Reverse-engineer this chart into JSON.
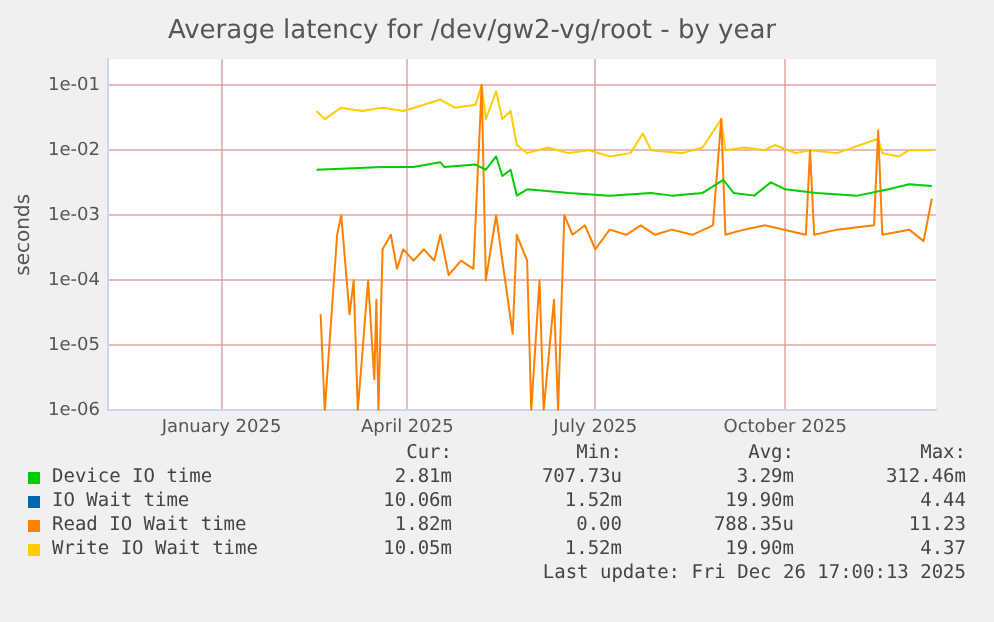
{
  "chart_data": {
    "type": "line",
    "title": "Average latency for /dev/gw2-vg/root - by year",
    "ylabel": "seconds",
    "log": "y",
    "grid": true,
    "legend": "bottom",
    "marker": "none",
    "line_style": "solid",
    "xlim": [
      "2024-11-22",
      "2025-12-28"
    ],
    "xticks": [
      {
        "value": "2025-01-16",
        "label": "January 2025"
      },
      {
        "value": "2025-04-16",
        "label": "April 2025"
      },
      {
        "value": "2025-07-16",
        "label": "July 2025"
      },
      {
        "value": "2025-10-16",
        "label": "October 2025"
      }
    ],
    "ylim": [
      1e-06,
      0.25
    ],
    "yticks": [
      {
        "value": 1e-06,
        "label": "1e-06"
      },
      {
        "value": 1e-05,
        "label": "1e-05"
      },
      {
        "value": 0.0001,
        "label": "1e-04"
      },
      {
        "value": 0.001,
        "label": "1e-03"
      },
      {
        "value": 0.01,
        "label": "1e-02"
      },
      {
        "value": 0.1,
        "label": "1e-01"
      }
    ],
    "series": [
      {
        "name": "Device IO time",
        "color": "#00cc00",
        "x": [
          "2025-03-03",
          "2025-03-15",
          "2025-04-04",
          "2025-04-19",
          "2025-05-02",
          "2025-05-04",
          "2025-05-19",
          "2025-05-24",
          "2025-05-29",
          "2025-06-01",
          "2025-06-05",
          "2025-06-08",
          "2025-06-13",
          "2025-07-03",
          "2025-07-23",
          "2025-08-12",
          "2025-08-22",
          "2025-09-06",
          "2025-09-16",
          "2025-09-21",
          "2025-10-01",
          "2025-10-09",
          "2025-10-16",
          "2025-10-31",
          "2025-11-20",
          "2025-12-05",
          "2025-12-15",
          "2025-12-26"
        ],
        "values": [
          0.005,
          0.0052,
          0.0055,
          0.0055,
          0.0065,
          0.0055,
          0.006,
          0.005,
          0.008,
          0.004,
          0.005,
          0.002,
          0.0025,
          0.0022,
          0.002,
          0.0022,
          0.002,
          0.0022,
          0.0035,
          0.0022,
          0.002,
          0.0032,
          0.0025,
          0.0022,
          0.002,
          0.0025,
          0.003,
          0.0028
        ]
      },
      {
        "name": "IO Wait time",
        "color": "#0066b3"
      },
      {
        "name": "Read IO Wait time",
        "color": "#ff8000",
        "x": [
          "2025-03-05",
          "2025-03-07",
          "2025-03-13",
          "2025-03-15",
          "2025-03-19",
          "2025-03-21",
          "2025-03-23",
          "2025-03-28",
          "2025-03-31",
          "2025-04-01",
          "2025-04-02",
          "2025-04-04",
          "2025-04-08",
          "2025-04-11",
          "2025-04-14",
          "2025-04-19",
          "2025-04-24",
          "2025-04-29",
          "2025-05-02",
          "2025-05-06",
          "2025-05-12",
          "2025-05-18",
          "2025-05-22",
          "2025-05-24",
          "2025-05-29",
          "2025-06-01",
          "2025-06-06",
          "2025-06-08",
          "2025-06-13",
          "2025-06-15",
          "2025-06-19",
          "2025-06-21",
          "2025-06-26",
          "2025-06-28",
          "2025-07-01",
          "2025-07-05",
          "2025-07-11",
          "2025-07-16",
          "2025-07-23",
          "2025-07-31",
          "2025-08-07",
          "2025-08-14",
          "2025-08-22",
          "2025-09-01",
          "2025-09-11",
          "2025-09-15",
          "2025-09-17",
          "2025-09-26",
          "2025-10-06",
          "2025-10-26",
          "2025-10-28",
          "2025-10-30",
          "2025-11-10",
          "2025-11-28",
          "2025-11-30",
          "2025-12-02",
          "2025-12-15",
          "2025-12-22",
          "2025-12-26"
        ],
        "values": [
          3e-05,
          1e-06,
          0.0005,
          0.001,
          3e-05,
          0.0001,
          1e-06,
          0.0001,
          3e-06,
          5e-05,
          1e-06,
          0.0003,
          0.0005,
          0.00015,
          0.0003,
          0.0002,
          0.0003,
          0.0002,
          0.0005,
          0.00012,
          0.0002,
          0.00015,
          0.1,
          0.0001,
          0.001,
          0.0002,
          1.5e-05,
          0.0005,
          0.0002,
          1e-06,
          0.0001,
          1e-06,
          5e-05,
          1e-06,
          0.001,
          0.0005,
          0.0007,
          0.0003,
          0.0006,
          0.0005,
          0.0007,
          0.0005,
          0.0006,
          0.0005,
          0.0007,
          0.03,
          0.0005,
          0.0006,
          0.0007,
          0.0005,
          0.01,
          0.0005,
          0.0006,
          0.0007,
          0.02,
          0.0005,
          0.0006,
          0.0004,
          0.0018
        ]
      },
      {
        "name": "Write IO Wait time",
        "color": "#ffcc00",
        "x": [
          "2025-03-03",
          "2025-03-07",
          "2025-03-15",
          "2025-03-25",
          "2025-04-04",
          "2025-04-14",
          "2025-04-24",
          "2025-05-02",
          "2025-05-09",
          "2025-05-19",
          "2025-05-22",
          "2025-05-24",
          "2025-05-29",
          "2025-06-01",
          "2025-06-05",
          "2025-06-08",
          "2025-06-13",
          "2025-06-23",
          "2025-07-03",
          "2025-07-13",
          "2025-07-23",
          "2025-08-02",
          "2025-08-08",
          "2025-08-12",
          "2025-08-27",
          "2025-09-06",
          "2025-09-15",
          "2025-09-17",
          "2025-09-26",
          "2025-10-06",
          "2025-10-11",
          "2025-10-21",
          "2025-10-28",
          "2025-11-10",
          "2025-11-30",
          "2025-12-02",
          "2025-12-10",
          "2025-12-15",
          "2025-12-26"
        ],
        "values": [
          0.04,
          0.03,
          0.045,
          0.04,
          0.045,
          0.04,
          0.05,
          0.06,
          0.045,
          0.05,
          0.1,
          0.03,
          0.08,
          0.03,
          0.04,
          0.012,
          0.009,
          0.011,
          0.009,
          0.01,
          0.008,
          0.009,
          0.018,
          0.01,
          0.009,
          0.011,
          0.03,
          0.01,
          0.011,
          0.01,
          0.012,
          0.009,
          0.01,
          0.009,
          0.015,
          0.009,
          0.008,
          0.01,
          0.01
        ]
      }
    ],
    "annotations": [
      "Cur:",
      "Min:",
      "Avg:",
      "Max:",
      "2.81m",
      "707.73u",
      "3.29m",
      "312.46m",
      "10.06m",
      "1.52m",
      "19.90m",
      "4.44",
      "1.82m",
      "0.00",
      "788.35u",
      "11.23",
      "10.05m",
      "1.52m",
      "19.90m",
      "4.37",
      "Last update: Fri Dec 26 17:00:13 2025"
    ]
  }
}
